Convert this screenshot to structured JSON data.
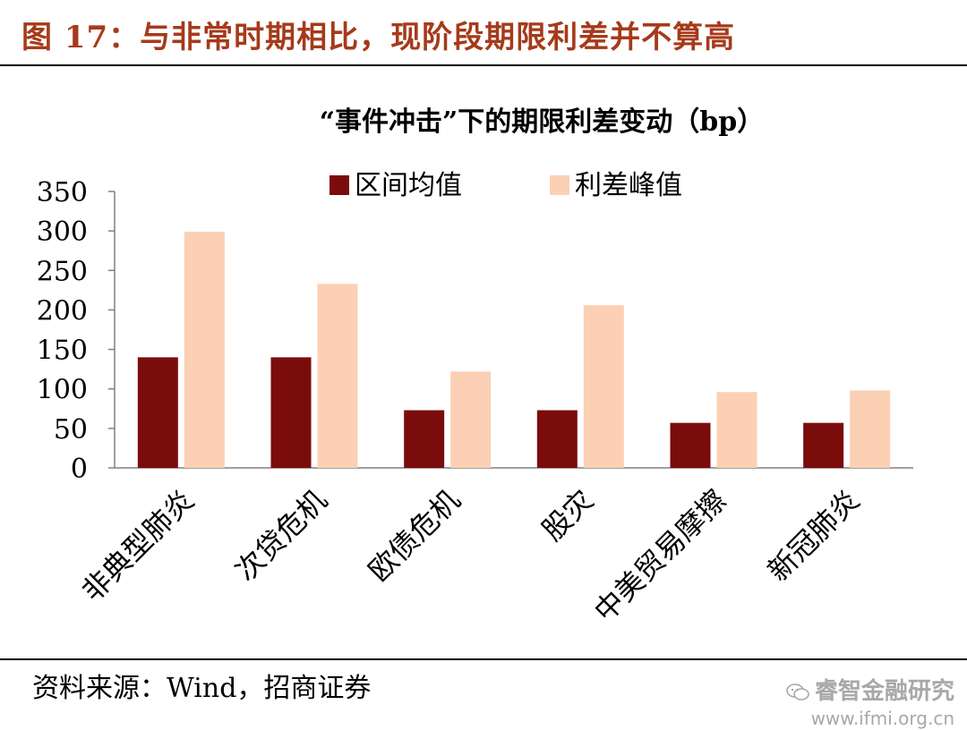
{
  "figure": {
    "title": "图 17：与非常时期相比，现阶段期限利差并不算高",
    "source": "资料来源：Wind，招商证券"
  },
  "watermark": {
    "name": "睿智金融研究",
    "url": "www.ifmi.org.cn",
    "icon": "wechat-icon"
  },
  "chart_data": {
    "type": "bar",
    "title": "“事件冲击”下的期限利差变动（bp）",
    "categories": [
      "非典型肺炎",
      "次贷危机",
      "欧债危机",
      "股灾",
      "中美贸易摩擦",
      "新冠肺炎"
    ],
    "series": [
      {
        "name": "区间均值",
        "color": "#7b0c0c",
        "values": [
          140,
          140,
          73,
          73,
          57,
          57
        ]
      },
      {
        "name": "利差峰值",
        "color": "#fbd0b4",
        "values": [
          299,
          233,
          122,
          206,
          96,
          98
        ]
      }
    ],
    "yticks": [
      "0",
      "50",
      "100",
      "150",
      "200",
      "250",
      "300",
      "350"
    ],
    "ylim": [
      0,
      350
    ],
    "grid": false,
    "legend": "top"
  }
}
